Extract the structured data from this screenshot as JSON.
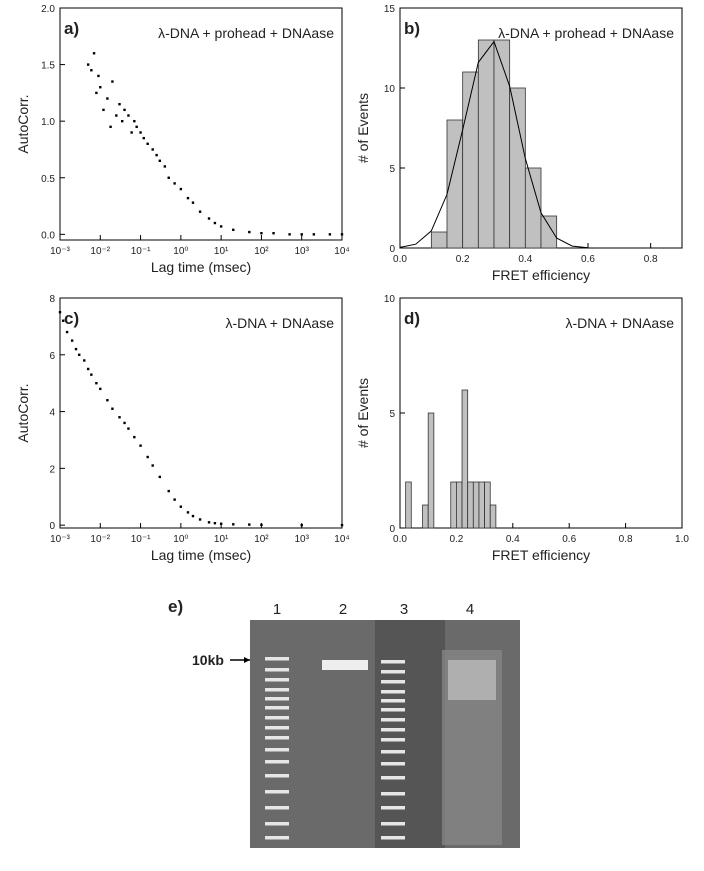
{
  "chart_data": [
    {
      "type": "scatter",
      "panel_label": "a)",
      "annotation": "λ-DNA + prohead + DNAase",
      "xlabel": "Lag time (msec)",
      "ylabel": "AutoCorr.",
      "xscale": "log",
      "color": "#000",
      "x": [
        0.005,
        0.006,
        0.007,
        0.008,
        0.009,
        0.01,
        0.012,
        0.015,
        0.018,
        0.02,
        0.025,
        0.03,
        0.035,
        0.04,
        0.05,
        0.06,
        0.07,
        0.08,
        0.1,
        0.12,
        0.15,
        0.2,
        0.25,
        0.3,
        0.4,
        0.5,
        0.7,
        1,
        1.5,
        2,
        3,
        5,
        7,
        10,
        20,
        50,
        100,
        200,
        500,
        1000,
        2000,
        5000,
        10000
      ],
      "values": [
        1.5,
        1.45,
        1.6,
        1.25,
        1.4,
        1.3,
        1.1,
        1.2,
        0.95,
        1.35,
        1.05,
        1.15,
        1.0,
        1.1,
        1.05,
        0.9,
        1.0,
        0.95,
        0.9,
        0.85,
        0.8,
        0.75,
        0.7,
        0.65,
        0.6,
        0.5,
        0.45,
        0.4,
        0.32,
        0.28,
        0.2,
        0.14,
        0.1,
        0.07,
        0.04,
        0.02,
        0.01,
        0.01,
        0,
        0,
        0,
        0,
        0
      ],
      "xlim": [
        0.001,
        10000
      ],
      "xticks": [
        {
          "value": 0.001,
          "label": "10⁻³"
        },
        {
          "value": 0.01,
          "label": "10⁻²"
        },
        {
          "value": 0.1,
          "label": "10⁻¹"
        },
        {
          "value": 1,
          "label": "10⁰"
        },
        {
          "value": 10,
          "label": "10¹"
        },
        {
          "value": 100,
          "label": "10²"
        },
        {
          "value": 1000,
          "label": "10³"
        },
        {
          "value": 10000,
          "label": "10⁴"
        }
      ],
      "ylim": [
        -0.05,
        2.0
      ],
      "yticks": [
        {
          "value": 0,
          "label": "0.0"
        },
        0.5,
        {
          "value": 1,
          "label": "1.0"
        },
        1.5,
        {
          "value": 2,
          "label": "2.0"
        }
      ]
    },
    {
      "type": "histogram",
      "panel_label": "b)",
      "annotation": "λ-DNA + prohead + DNAase",
      "xlabel": "FRET efficiency",
      "ylabel": "# of Events",
      "color": "#c0c0c0",
      "bins": [
        0.1,
        0.15,
        0.2,
        0.25,
        0.3,
        0.35,
        0.4,
        0.45,
        0.5
      ],
      "values": [
        1,
        8,
        11,
        13,
        13,
        10,
        5,
        2
      ],
      "fit": {
        "x": [
          0,
          0.05,
          0.1,
          0.15,
          0.2,
          0.25,
          0.3,
          0.35,
          0.4,
          0.45,
          0.5,
          0.55,
          0.6
        ],
        "values": [
          0.04,
          0.24,
          1.07,
          3.35,
          7.4,
          11.6,
          12.9,
          10.1,
          5.6,
          2.2,
          0.62,
          0.12,
          0.02
        ],
        "color": "#000"
      },
      "xlim": [
        0,
        0.9
      ],
      "xticks": [
        {
          "value": 0,
          "label": "0.0"
        },
        0.2,
        0.4,
        0.6,
        0.8
      ],
      "ylim": [
        0,
        15
      ],
      "yticks": [
        0,
        5,
        10,
        15
      ]
    },
    {
      "type": "scatter",
      "panel_label": "c)",
      "annotation": "λ-DNA + DNAase",
      "xlabel": "Lag time (msec)",
      "ylabel": "AutoCorr.",
      "xscale": "log",
      "color": "#000",
      "x": [
        0.001,
        0.0012,
        0.0015,
        0.002,
        0.0025,
        0.003,
        0.004,
        0.005,
        0.006,
        0.008,
        0.01,
        0.015,
        0.02,
        0.03,
        0.04,
        0.05,
        0.07,
        0.1,
        0.15,
        0.2,
        0.3,
        0.5,
        0.7,
        1,
        1.5,
        2,
        3,
        5,
        7,
        10,
        20,
        50,
        100,
        1000,
        10000
      ],
      "values": [
        7.5,
        7.2,
        6.8,
        6.5,
        6.2,
        6.0,
        5.8,
        5.5,
        5.3,
        5.0,
        4.8,
        4.4,
        4.1,
        3.8,
        3.6,
        3.4,
        3.1,
        2.8,
        2.4,
        2.1,
        1.7,
        1.2,
        0.9,
        0.65,
        0.45,
        0.32,
        0.2,
        0.1,
        0.07,
        0.05,
        0.03,
        0.02,
        0.01,
        0,
        0
      ],
      "xlim": [
        0.001,
        10000
      ],
      "xticks": [
        {
          "value": 0.001,
          "label": "10⁻³"
        },
        {
          "value": 0.01,
          "label": "10⁻²"
        },
        {
          "value": 0.1,
          "label": "10⁻¹"
        },
        {
          "value": 1,
          "label": "10⁰"
        },
        {
          "value": 10,
          "label": "10¹"
        },
        {
          "value": 100,
          "label": "10²"
        },
        {
          "value": 1000,
          "label": "10³"
        },
        {
          "value": 10000,
          "label": "10⁴"
        }
      ],
      "ylim": [
        -0.1,
        8
      ],
      "yticks": [
        0,
        2,
        4,
        6,
        8
      ]
    },
    {
      "type": "histogram",
      "panel_label": "d)",
      "annotation": "λ-DNA + DNAase",
      "xlabel": "FRET efficiency",
      "ylabel": "# of Events",
      "color": "#c0c0c0",
      "bins": [
        0.02,
        0.04,
        0.06,
        0.08,
        0.1,
        0.12,
        0.14,
        0.16,
        0.18,
        0.2,
        0.22,
        0.24,
        0.26,
        0.28,
        0.3,
        0.32,
        0.34
      ],
      "values": [
        2,
        0,
        0,
        1,
        5,
        0,
        0,
        0,
        2,
        2,
        6,
        2,
        2,
        2,
        2,
        1
      ],
      "xlim": [
        0,
        1.0
      ],
      "xticks": [
        {
          "value": 0,
          "label": "0.0"
        },
        0.2,
        0.4,
        0.6,
        0.8,
        {
          "value": 1,
          "label": "1.0"
        }
      ],
      "ylim": [
        0,
        10
      ],
      "yticks": [
        0,
        5,
        10
      ]
    }
  ],
  "gel": {
    "label": "e)",
    "lanes": [
      "1",
      "2",
      "3",
      "4"
    ],
    "marker": "10kb"
  }
}
